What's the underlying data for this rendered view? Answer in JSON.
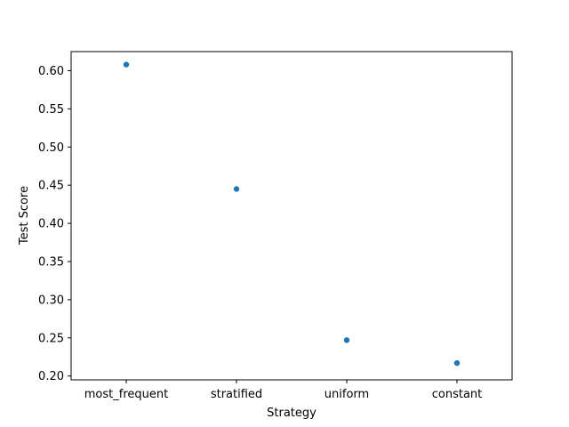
{
  "chart_data": {
    "type": "scatter",
    "title": "",
    "xlabel": "Strategy",
    "ylabel": "Test Score",
    "categories": [
      "most_frequent",
      "stratified",
      "uniform",
      "constant"
    ],
    "values": [
      0.608,
      0.445,
      0.247,
      0.217
    ],
    "y_ticks": [
      "0.20",
      "0.25",
      "0.30",
      "0.35",
      "0.40",
      "0.45",
      "0.50",
      "0.55",
      "0.60"
    ],
    "ylim": [
      0.195,
      0.625
    ],
    "grid": false,
    "legend": "none",
    "marker_color": "#1f77b4"
  }
}
